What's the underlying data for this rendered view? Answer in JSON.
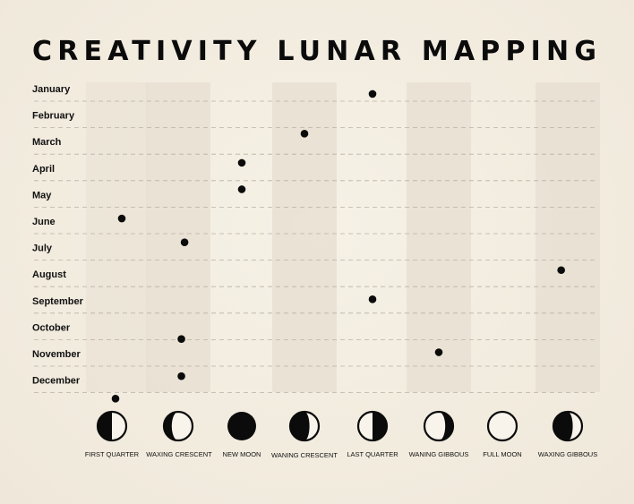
{
  "title": "CREATIVITY LUNAR MAPPING",
  "chart_data": {
    "type": "scatter",
    "title": "CREATIVITY LUNAR MAPPING",
    "months": [
      "January",
      "February",
      "March",
      "April",
      "May",
      "June",
      "July",
      "August",
      "September",
      "October",
      "November",
      "December"
    ],
    "phases": [
      {
        "label": "FIRST QUARTER",
        "icon": "first-quarter-moon-icon"
      },
      {
        "label": "WAXING CRESCENT",
        "icon": "waxing-crescent-moon-icon"
      },
      {
        "label": "NEW MOON",
        "icon": "new-moon-icon"
      },
      {
        "label": "WANING CRESCENT",
        "icon": "waning-crescent-moon-icon"
      },
      {
        "label": "LAST QUARTER",
        "icon": "last-quarter-moon-icon"
      },
      {
        "label": "WANING GIBBOUS",
        "icon": "waning-gibbous-moon-icon"
      },
      {
        "label": "FULL MOON",
        "icon": "full-moon-icon"
      },
      {
        "label": "WAXING GIBBOUS",
        "icon": "waxing-gibbous-moon-icon"
      }
    ],
    "points": [
      {
        "month": 0.2,
        "phase": 4.0
      },
      {
        "month": 1.7,
        "phase": 3.0
      },
      {
        "month": 2.8,
        "phase": 2.0
      },
      {
        "month": 3.8,
        "phase": 2.0
      },
      {
        "month": 4.9,
        "phase": 0.1
      },
      {
        "month": 5.8,
        "phase": 1.1
      },
      {
        "month": 6.85,
        "phase": 6.9
      },
      {
        "month": 7.95,
        "phase": 4.0
      },
      {
        "month": 9.45,
        "phase": 1.05
      },
      {
        "month": 9.95,
        "phase": 5.0
      },
      {
        "month": 10.85,
        "phase": 1.05
      },
      {
        "month": 11.7,
        "phase": 0.0
      }
    ],
    "colors": {
      "dot": "#0b0b0b",
      "band": "#e7e0d2",
      "gridline": "#b9b2a5",
      "text": "#111111"
    },
    "grid": true
  }
}
